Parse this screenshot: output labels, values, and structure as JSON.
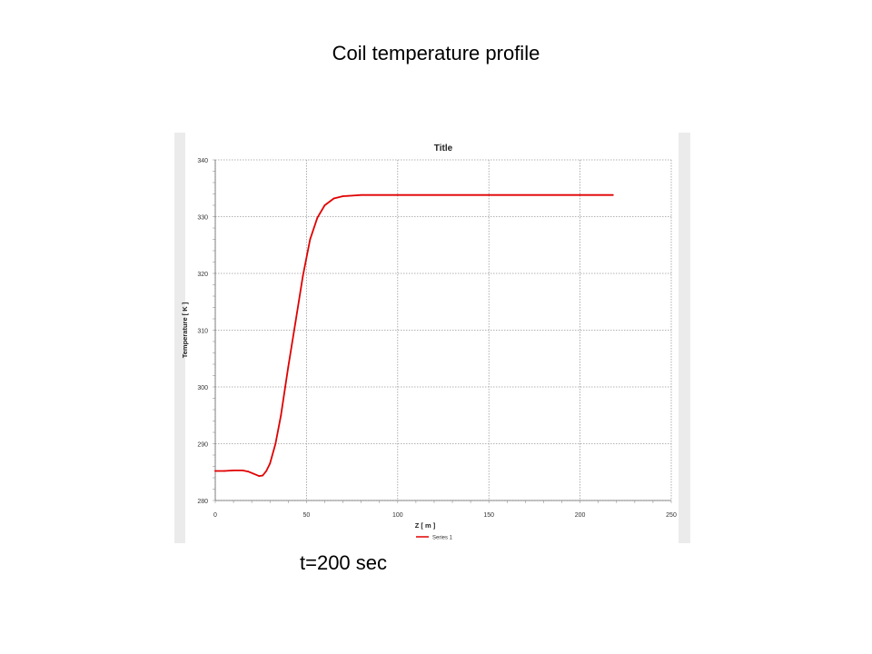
{
  "slide": {
    "title": "Coil temperature profile",
    "caption": "t=200 sec"
  },
  "chart_data": {
    "type": "line",
    "title": "Title",
    "xlabel": "Z [ m ]",
    "ylabel": "Temperature [ K ]",
    "xlim": [
      0,
      250
    ],
    "ylim": [
      280,
      340
    ],
    "xticks": [
      0,
      50,
      100,
      150,
      200,
      250
    ],
    "yticks": [
      280,
      290,
      300,
      310,
      320,
      330,
      340
    ],
    "grid": true,
    "legend": "bottom-center",
    "series": [
      {
        "name": "Series 1",
        "color": "#e00000",
        "x": [
          0,
          5,
          10,
          15,
          18,
          21,
          24,
          26,
          28,
          30,
          33,
          36,
          40,
          44,
          48,
          52,
          56,
          60,
          65,
          70,
          75,
          80,
          100,
          150,
          200,
          218
        ],
        "y": [
          285.2,
          285.2,
          285.3,
          285.3,
          285.1,
          284.7,
          284.3,
          284.4,
          285.2,
          286.5,
          290.0,
          295.0,
          303.5,
          311.5,
          319.5,
          326.0,
          329.8,
          332.0,
          333.2,
          333.6,
          333.7,
          333.8,
          333.8,
          333.8,
          333.8,
          333.8
        ]
      }
    ]
  }
}
